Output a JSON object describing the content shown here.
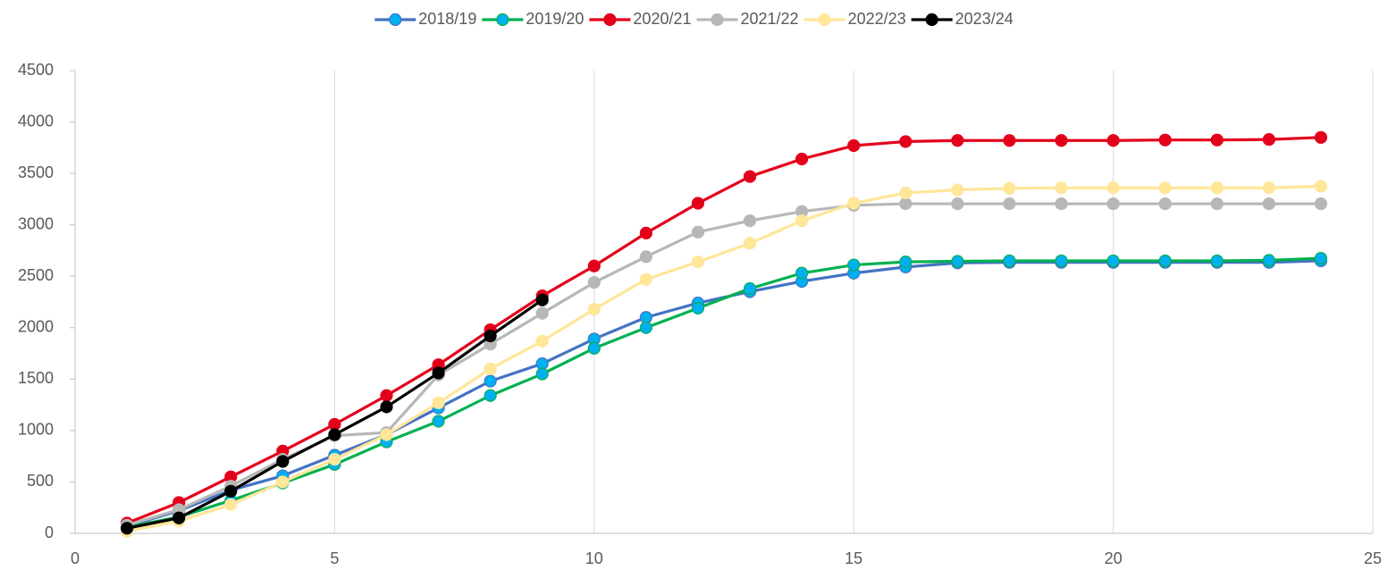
{
  "chart_data": {
    "type": "line",
    "x": [
      1,
      2,
      3,
      4,
      5,
      6,
      7,
      8,
      9,
      10,
      11,
      12,
      13,
      14,
      15,
      16,
      17,
      18,
      19,
      20,
      21,
      22,
      23,
      24
    ],
    "xlim": [
      0,
      25
    ],
    "xticks": [
      0,
      5,
      10,
      15,
      20,
      25
    ],
    "ylim": [
      0,
      4500
    ],
    "yticks": [
      0,
      500,
      1000,
      1500,
      2000,
      2500,
      3000,
      3500,
      4000,
      4500
    ],
    "grid": "x",
    "legend": "top",
    "series": [
      {
        "name": "2018/19",
        "color": "#4472c4",
        "marker_color": "#00b0f0",
        "values": [
          70,
          220,
          420,
          560,
          760,
          960,
          1220,
          1480,
          1650,
          1890,
          2100,
          2240,
          2350,
          2450,
          2530,
          2590,
          2630,
          2635,
          2635,
          2635,
          2635,
          2635,
          2635,
          2650
        ]
      },
      {
        "name": "2019/20",
        "color": "#00b050",
        "marker_color": "#00b0f0",
        "values": [
          60,
          160,
          320,
          490,
          670,
          890,
          1090,
          1340,
          1550,
          1800,
          2000,
          2190,
          2380,
          2530,
          2610,
          2640,
          2645,
          2650,
          2650,
          2650,
          2650,
          2650,
          2655,
          2675
        ]
      },
      {
        "name": "2020/21",
        "color": "#e3001b",
        "marker_color": "#e3001b",
        "values": [
          100,
          300,
          550,
          800,
          1060,
          1340,
          1640,
          1980,
          2310,
          2600,
          2920,
          3210,
          3470,
          3640,
          3770,
          3810,
          3820,
          3820,
          3820,
          3820,
          3825,
          3825,
          3830,
          3850
        ]
      },
      {
        "name": "2021/22",
        "color": "#b7b7b7",
        "marker_color": "#b7b7b7",
        "values": [
          80,
          230,
          460,
          720,
          950,
          980,
          1540,
          1840,
          2140,
          2440,
          2690,
          2930,
          3040,
          3130,
          3190,
          3205,
          3205,
          3205,
          3205,
          3205,
          3205,
          3205,
          3205,
          3205
        ]
      },
      {
        "name": "2022/23",
        "color": "#ffe699",
        "marker_color": "#ffe699",
        "values": [
          20,
          120,
          280,
          500,
          720,
          960,
          1270,
          1600,
          1870,
          2180,
          2470,
          2640,
          2820,
          3040,
          3210,
          3310,
          3340,
          3355,
          3360,
          3360,
          3360,
          3360,
          3360,
          3375
        ]
      },
      {
        "name": "2023/24",
        "color": "#000000",
        "marker_color": "#000000",
        "values": [
          50,
          150,
          410,
          700,
          960,
          1230,
          1560,
          1920,
          2270,
          null,
          null,
          null,
          null,
          null,
          null,
          null,
          null,
          null,
          null,
          null,
          null,
          null,
          null,
          null
        ]
      }
    ]
  }
}
